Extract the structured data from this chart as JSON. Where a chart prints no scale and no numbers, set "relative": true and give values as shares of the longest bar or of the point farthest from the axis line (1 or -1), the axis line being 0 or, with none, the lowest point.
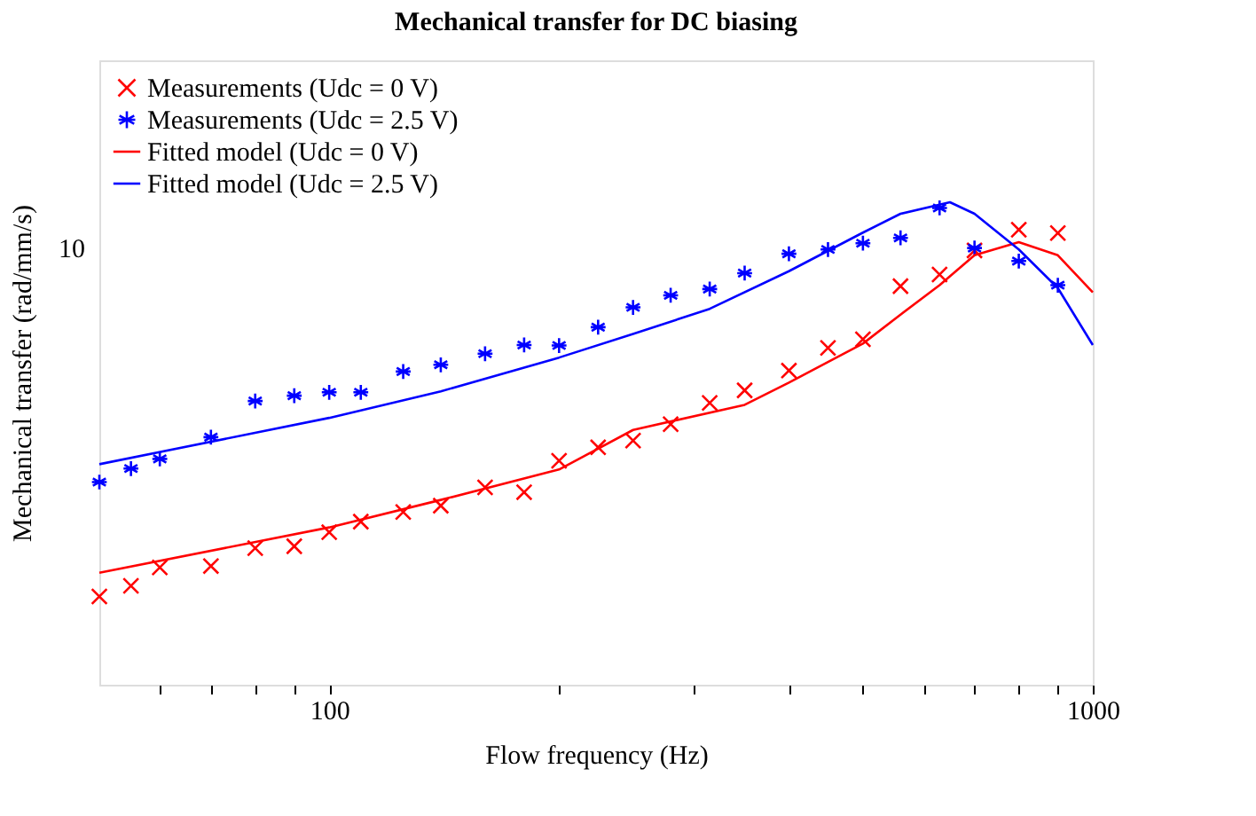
{
  "chart_data": {
    "type": "scatter",
    "title": "Mechanical transfer for DC biasing",
    "xlabel": "Flow frequency (Hz)",
    "ylabel": "Mechanical transfer (rad/mm/s)",
    "log": "x",
    "grid": false,
    "legend": "top left",
    "line_style": "solid",
    "relative": true,
    "annotations": [
      "10"
    ],
    "xlim": [
      50,
      1000
    ],
    "xticks": [
      {
        "value": 60,
        "label": null
      },
      {
        "value": 70,
        "label": null
      },
      {
        "value": 80,
        "label": null
      },
      {
        "value": 90,
        "label": null
      },
      100,
      {
        "value": 200,
        "label": null
      },
      {
        "value": 300,
        "label": null
      },
      {
        "value": 400,
        "label": null
      },
      {
        "value": 500,
        "label": null
      },
      {
        "value": 600,
        "label": null
      },
      {
        "value": 700,
        "label": null
      },
      {
        "value": 800,
        "label": null
      },
      {
        "value": 900,
        "label": null
      },
      1000
    ],
    "x": [
      50,
      55,
      60,
      70,
      80,
      90,
      100,
      110,
      125,
      140,
      160,
      180,
      200,
      225,
      250,
      280,
      315,
      350,
      400,
      450,
      500,
      560,
      630,
      700,
      800,
      900
    ],
    "series": [
      {
        "name": "Measurements (Udc = 0 V)",
        "color": "#ff0000",
        "marker": "cross",
        "values": [
          0.183,
          0.205,
          0.243,
          0.246,
          0.283,
          0.287,
          0.316,
          0.338,
          0.358,
          0.371,
          0.409,
          0.399,
          0.464,
          0.492,
          0.506,
          0.54,
          0.584,
          0.61,
          0.651,
          0.698,
          0.716,
          0.826,
          0.85,
          0.9,
          0.943,
          0.936
        ]
      },
      {
        "name": "Measurements (Udc = 2.5 V)",
        "color": "#0000ff",
        "values": [
          0.42,
          0.448,
          0.468,
          0.513,
          0.588,
          0.599,
          0.606,
          0.606,
          0.649,
          0.663,
          0.686,
          0.704,
          0.703,
          0.741,
          0.782,
          0.807,
          0.82,
          0.853,
          0.893,
          0.902,
          0.915,
          0.926,
          0.988,
          0.905,
          0.878,
          0.828
        ]
      },
      {
        "name": "Fitted model (Udc = 0 V)",
        "color": "#ff0000",
        "type": "line",
        "marker": "none",
        "x": [
          50,
          100,
          140,
          200,
          250,
          350,
          400,
          450,
          500,
          560,
          630,
          700,
          800,
          900,
          1000
        ],
        "values": [
          0.232,
          0.326,
          0.383,
          0.446,
          0.528,
          0.58,
          0.626,
          0.669,
          0.707,
          0.767,
          0.828,
          0.89,
          0.917,
          0.89,
          0.813
        ]
      },
      {
        "name": "Fitted model (Udc = 2.5 V)",
        "color": "#0000ff",
        "type": "line",
        "marker": "none",
        "x": [
          50,
          100,
          140,
          200,
          250,
          315,
          400,
          500,
          560,
          650,
          700,
          800,
          900,
          1000
        ],
        "values": [
          0.457,
          0.553,
          0.608,
          0.678,
          0.727,
          0.779,
          0.857,
          0.937,
          0.976,
          1,
          0.976,
          0.902,
          0.822,
          0.704
        ]
      }
    ]
  }
}
